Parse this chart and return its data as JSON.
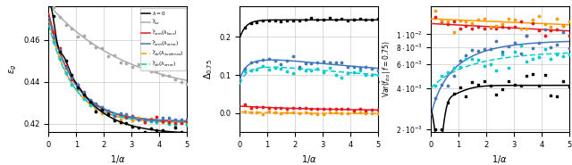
{
  "figsize": [
    6.4,
    1.85
  ],
  "dpi": 100,
  "panel1": {
    "xlabel": "$1 / \\alpha$",
    "ylabel": "$\\varepsilon_g$",
    "xlim": [
      0,
      5
    ],
    "ylim": [
      0.416,
      0.476
    ],
    "yticks": [
      0.42,
      0.44,
      0.46
    ],
    "colors": {
      "lambda0": "#000000",
      "fbo": "#aaaaaa",
      "ferm_loss": "#e41a1c",
      "ferm_error": "#4477bb",
      "feb_evidence": "#ff9900",
      "feb_error": "#00cccc"
    }
  },
  "panel2": {
    "xlabel": "$1 / \\alpha$",
    "ylabel": "$\\Delta_{0.75}$",
    "xlim": [
      0,
      5
    ],
    "ylim": [
      -0.05,
      0.28
    ],
    "yticks": [
      0.0,
      0.1,
      0.2
    ],
    "colors": {
      "lambda0": "#000000",
      "ferm_error": "#4477bb",
      "feb_error": "#00cccc",
      "ferm_loss": "#e41a1c",
      "feb_evidence": "#ff9900"
    }
  },
  "panel3": {
    "xlabel": "$1 / \\alpha$",
    "ylabel": "$\\mathrm{Var}(\\hat{f}_{bo}\\,|\\,f = 0.75)$",
    "xlim": [
      0,
      5
    ],
    "ylim_log": [
      0.0019,
      0.016
    ],
    "yticks": [
      0.002,
      0.004,
      0.006,
      0.008,
      0.01
    ],
    "ytick_labels": [
      "$2\\cdot10^{-3}$",
      "$4\\cdot10^{-3}$",
      "$6\\cdot10^{-3}$",
      "$8\\cdot10^{-3}$",
      "$1\\cdot10^{-2}$"
    ],
    "colors": {
      "feb_evidence": "#ff9900",
      "ferm_loss": "#e41a1c",
      "ferm_error": "#4477bb",
      "feb_error": "#00cccc",
      "lambda0": "#000000"
    }
  }
}
